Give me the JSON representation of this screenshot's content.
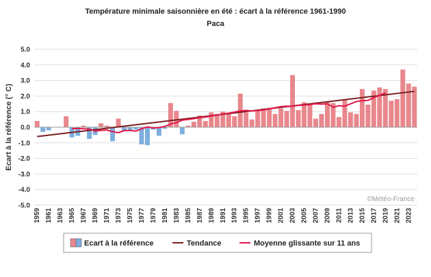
{
  "chart_data": {
    "type": "bar",
    "title": "Température minimale saisonnière en été : écart à la référence 1961-1990",
    "subtitle": "Paca",
    "ylabel": "Ecart à la référence (° C)",
    "ylim": [
      -5,
      5
    ],
    "yticks": [
      "5.0",
      "4.0",
      "3.0",
      "2.0",
      "1.0",
      "0.0",
      "-1.0",
      "-2.0",
      "-3.0",
      "-4.0",
      "-5.0"
    ],
    "x_tick_labels": [
      "1959",
      "1961",
      "1963",
      "1965",
      "1967",
      "1969",
      "1971",
      "1973",
      "1975",
      "1977",
      "1979",
      "1981",
      "1983",
      "1985",
      "1987",
      "1989",
      "1991",
      "1993",
      "1995",
      "1997",
      "1999",
      "2001",
      "2003",
      "2005",
      "2007",
      "2009",
      "2011",
      "2013",
      "2015",
      "2017",
      "2019",
      "2021",
      "2023"
    ],
    "years": [
      1959,
      1960,
      1961,
      1962,
      1963,
      1964,
      1965,
      1966,
      1967,
      1968,
      1969,
      1970,
      1971,
      1972,
      1973,
      1974,
      1975,
      1976,
      1977,
      1978,
      1979,
      1980,
      1981,
      1982,
      1983,
      1984,
      1985,
      1986,
      1987,
      1988,
      1989,
      1990,
      1991,
      1992,
      1993,
      1994,
      1995,
      1996,
      1997,
      1998,
      1999,
      2000,
      2001,
      2002,
      2003,
      2004,
      2005,
      2006,
      2007,
      2008,
      2009,
      2010,
      2011,
      2012,
      2013,
      2014,
      2015,
      2016,
      2017,
      2018,
      2019,
      2020,
      2021,
      2022,
      2023,
      2024
    ],
    "series": [
      {
        "name": "Ecart à la référence",
        "values": [
          0.4,
          -0.3,
          -0.2,
          0.0,
          0.0,
          0.7,
          -0.65,
          -0.55,
          0.1,
          -0.75,
          -0.5,
          0.25,
          0.1,
          -0.9,
          0.55,
          -0.2,
          -0.2,
          -0.15,
          -1.1,
          -1.15,
          -0.15,
          -0.55,
          -0.1,
          1.55,
          1.05,
          -0.45,
          0.1,
          0.35,
          0.75,
          0.4,
          0.95,
          0.85,
          1.0,
          0.85,
          0.7,
          2.15,
          0.95,
          0.5,
          1.1,
          1.2,
          1.25,
          0.85,
          1.2,
          1.05,
          3.35,
          1.1,
          1.6,
          1.5,
          0.55,
          0.85,
          1.65,
          1.55,
          0.65,
          1.75,
          0.95,
          0.85,
          2.45,
          1.45,
          2.35,
          2.55,
          2.45,
          1.7,
          1.8,
          3.7,
          2.8,
          2.6
        ]
      },
      {
        "name": "Tendance",
        "values": [
          -0.6,
          2.3
        ]
      },
      {
        "name": "Moyenne glissante sur 11 ans",
        "values": [
          null,
          null,
          null,
          null,
          null,
          null,
          -0.1,
          -0.08,
          -0.1,
          -0.12,
          -0.25,
          -0.2,
          -0.18,
          -0.28,
          -0.35,
          -0.22,
          -0.2,
          -0.25,
          -0.1,
          0.02,
          -0.05,
          -0.02,
          0.05,
          0.2,
          0.3,
          0.45,
          0.5,
          0.55,
          0.62,
          0.65,
          0.72,
          0.78,
          0.85,
          0.9,
          0.97,
          1.05,
          1.08,
          1.05,
          1.07,
          1.1,
          1.18,
          1.25,
          1.32,
          1.35,
          1.35,
          1.4,
          1.42,
          1.45,
          1.5,
          1.48,
          1.5,
          1.28,
          1.38,
          1.35,
          1.5,
          1.65,
          1.7,
          1.72,
          1.9,
          2.05,
          2.2,
          null,
          null,
          null,
          null,
          null
        ]
      }
    ],
    "colors": {
      "positive_bar": "#e8878c",
      "negative_bar": "#7eaedd",
      "trend": "#7a1e1e",
      "moving_avg": "#e0174a",
      "grid": "#dddddd"
    },
    "legend_position": "bottom",
    "legend": [
      {
        "label": "Ecart à la référence",
        "kind": "bar"
      },
      {
        "label": "Tendance",
        "kind": "trend"
      },
      {
        "label": "Moyenne glissante sur 11 ans",
        "kind": "moving_avg"
      }
    ],
    "grid": true,
    "watermark": "©Météo-France"
  }
}
